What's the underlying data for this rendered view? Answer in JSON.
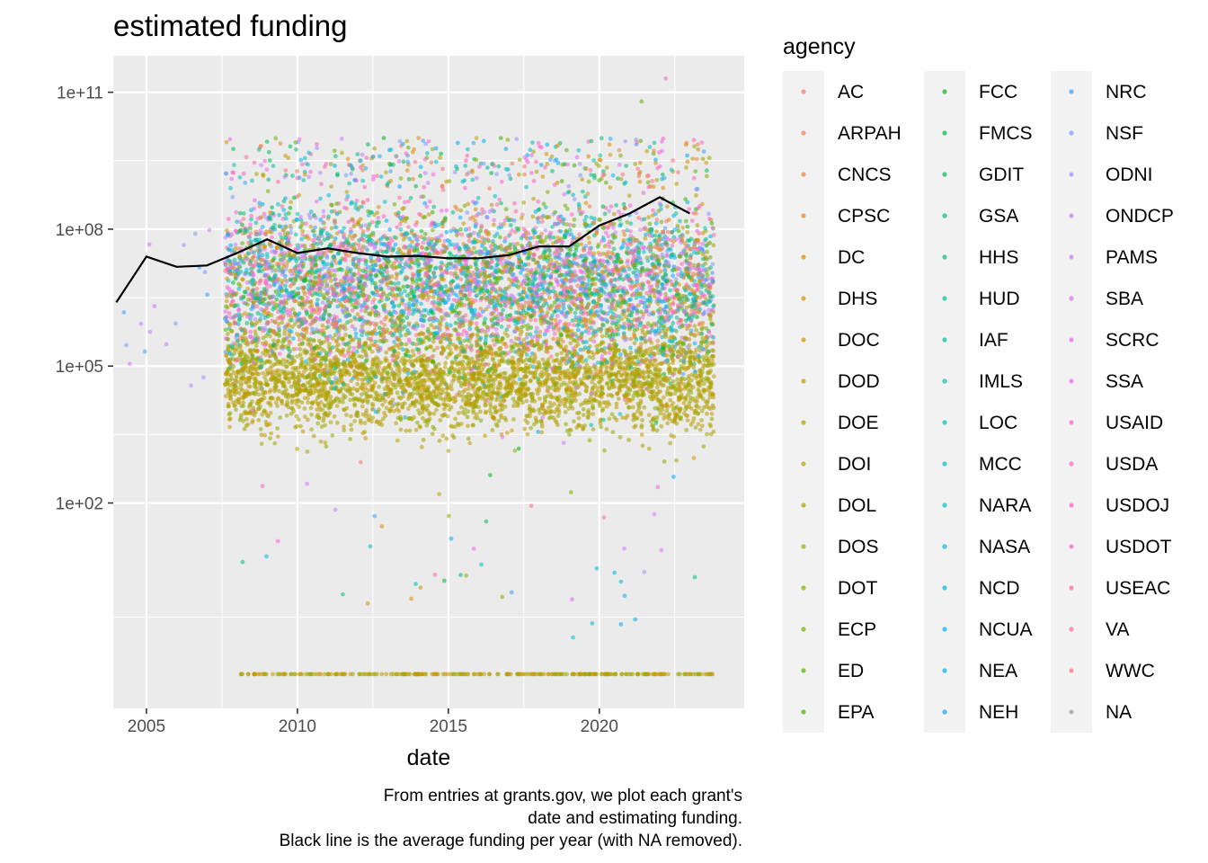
{
  "chart_data": {
    "type": "scatter",
    "title": "estimated funding",
    "xlabel": "date",
    "ylabel": "",
    "y_scale": "log10",
    "x_ticks": [
      "2005",
      "2010",
      "2015",
      "2020"
    ],
    "y_ticks": [
      "1e+02",
      "1e+05",
      "1e+08",
      "1e+11"
    ],
    "xlim": [
      2003.9,
      2024.8
    ],
    "ylim_log10": [
      -2.5,
      11.8
    ],
    "grid": true,
    "caption": [
      "From entries at grants.gov, we plot each grant's",
      "date and estimating funding.",
      "Black line is the average funding per year (with NA removed)."
    ],
    "legend": {
      "title": "agency",
      "position": "right",
      "entries": [
        "AC",
        "ARPAH",
        "CNCS",
        "CPSC",
        "DC",
        "DHS",
        "DOC",
        "DOD",
        "DOE",
        "DOI",
        "DOL",
        "DOS",
        "DOT",
        "ECP",
        "ED",
        "EPA",
        "FCC",
        "FMCS",
        "GDIT",
        "GSA",
        "HHS",
        "HUD",
        "IAF",
        "IMLS",
        "LOC",
        "MCC",
        "NARA",
        "NASA",
        "NCD",
        "NCUA",
        "NEA",
        "NEH",
        "NRC",
        "NSF",
        "ODNI",
        "ONDCP",
        "PAMS",
        "SBA",
        "SCRC",
        "SSA",
        "USAID",
        "USDA",
        "USDOJ",
        "USDOT",
        "USEAC",
        "VA",
        "WWC",
        "NA"
      ],
      "colors": [
        "#F8766D",
        "#F37B59",
        "#ED8141",
        "#E7861B",
        "#E08B00",
        "#D89000",
        "#CF9400",
        "#C59900",
        "#BB9D00",
        "#AFA100",
        "#A3A500",
        "#95A900",
        "#85AD00",
        "#72B000",
        "#5BB300",
        "#39B600",
        "#00B81F",
        "#00BA42",
        "#00BC59",
        "#00BE6C",
        "#00BF7D",
        "#00C08D",
        "#00C19C",
        "#00C1AA",
        "#00C0B8",
        "#00BFC4",
        "#00BDD0",
        "#00BADA",
        "#00B6E5",
        "#00B2ED",
        "#00ADF5",
        "#00A8FF",
        "#35A2FF",
        "#7B9AFF",
        "#9F8FFF",
        "#B983FF",
        "#CF78FF",
        "#DE71F9",
        "#EA6AF1",
        "#F265E7",
        "#F962DD",
        "#FD61D1",
        "#FF61C3",
        "#FF63B6",
        "#FF67A7",
        "#FE6C97",
        "#FA7087",
        "#999999"
      ]
    },
    "annual_mean": {
      "color": "#000000",
      "x": [
        2004,
        2005,
        2006,
        2007,
        2008,
        2009,
        2010,
        2011,
        2012,
        2013,
        2014,
        2015,
        2016,
        2017,
        2018,
        2019,
        2020,
        2021,
        2022,
        2023
      ],
      "y": [
        2500000,
        25000000,
        15000000,
        16000000,
        30000000,
        60000000,
        30000000,
        38000000,
        30000000,
        25000000,
        26000000,
        23000000,
        23000000,
        27000000,
        42000000,
        42000000,
        120000000,
        220000000,
        500000000,
        220000000
      ]
    },
    "scatter_summary": {
      "x_range": [
        2004.2,
        2023.8
      ],
      "dense_band_log10": [
        4.2,
        9.0
      ],
      "max_value": 200000000000
    }
  }
}
